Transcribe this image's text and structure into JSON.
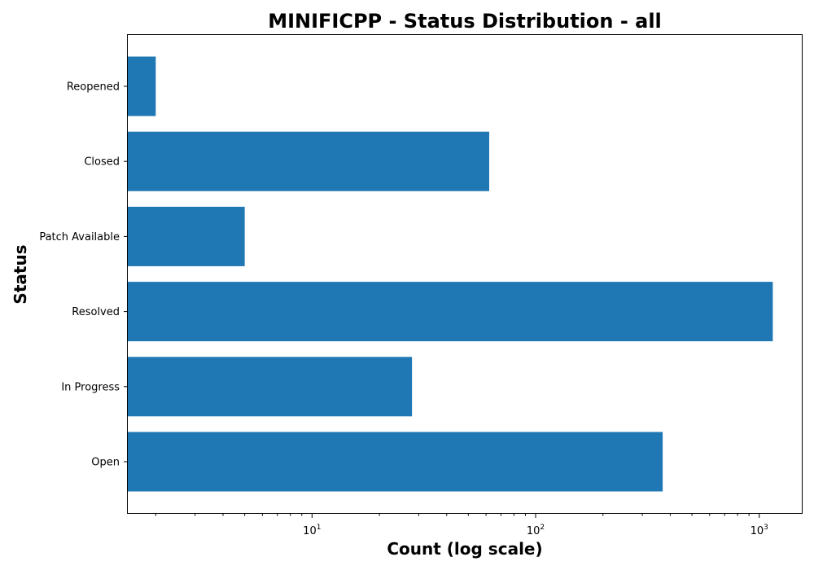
{
  "chart_data": {
    "type": "bar",
    "orientation": "horizontal",
    "title": "MINIFICPP - Status Distribution - all",
    "xlabel": "Count (log scale)",
    "ylabel": "Status",
    "x_scale": "log",
    "xlim": [
      1.5,
      1550
    ],
    "x_ticks": [
      {
        "value": 10,
        "base": "10",
        "exponent": "1"
      },
      {
        "value": 100,
        "base": "10",
        "exponent": "2"
      },
      {
        "value": 1000,
        "base": "10",
        "exponent": "3"
      }
    ],
    "categories": [
      "Open",
      "In Progress",
      "Resolved",
      "Patch Available",
      "Closed",
      "Reopened"
    ],
    "values": [
      370,
      28,
      1150,
      5,
      62,
      2
    ],
    "bar_color": "#1f77b4",
    "grid": false,
    "legend": "none"
  }
}
